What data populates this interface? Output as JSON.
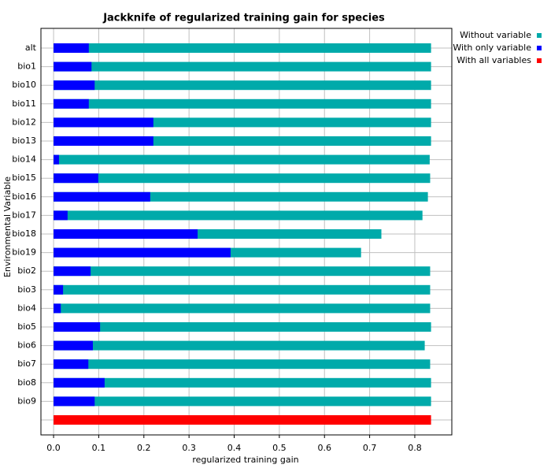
{
  "chart_data": {
    "type": "bar",
    "orientation": "horizontal",
    "title": "Jackknife of regularized training gain for species",
    "xlabel": "regularized training gain",
    "ylabel": "Environmental Variable",
    "categories": [
      "alt",
      "bio1",
      "bio10",
      "bio11",
      "bio12",
      "bio13",
      "bio14",
      "bio15",
      "bio16",
      "bio17",
      "bio18",
      "bio19",
      "bio2",
      "bio3",
      "bio4",
      "bio5",
      "bio6",
      "bio7",
      "bio8",
      "bio9",
      null
    ],
    "series": [
      {
        "name": "Without variable",
        "color": "#00aaaa",
        "values": [
          0.836,
          0.836,
          0.836,
          0.836,
          0.836,
          0.836,
          0.833,
          0.834,
          0.829,
          0.817,
          0.726,
          0.681,
          0.834,
          0.834,
          0.834,
          0.836,
          0.822,
          0.834,
          0.836,
          0.836,
          null
        ]
      },
      {
        "name": "With only variable",
        "color": "#0000ff",
        "values": [
          0.078,
          0.084,
          0.091,
          0.078,
          0.221,
          0.221,
          0.012,
          0.099,
          0.214,
          0.031,
          0.319,
          0.392,
          0.082,
          0.021,
          0.016,
          0.103,
          0.087,
          0.077,
          0.113,
          0.091,
          null
        ]
      },
      {
        "name": "With all variables",
        "color": "#ff0000",
        "values": [
          null,
          null,
          null,
          null,
          null,
          null,
          null,
          null,
          null,
          null,
          null,
          null,
          null,
          null,
          null,
          null,
          null,
          null,
          null,
          null,
          0.836
        ]
      }
    ],
    "xlim": [
      -0.028,
      0.882
    ],
    "xticks": [
      {
        "value": 0,
        "label": "0.0"
      },
      0.1,
      0.2,
      0.3,
      0.4,
      0.5,
      0.6,
      0.7,
      0.8
    ],
    "grid": true,
    "legend": "top-right"
  }
}
